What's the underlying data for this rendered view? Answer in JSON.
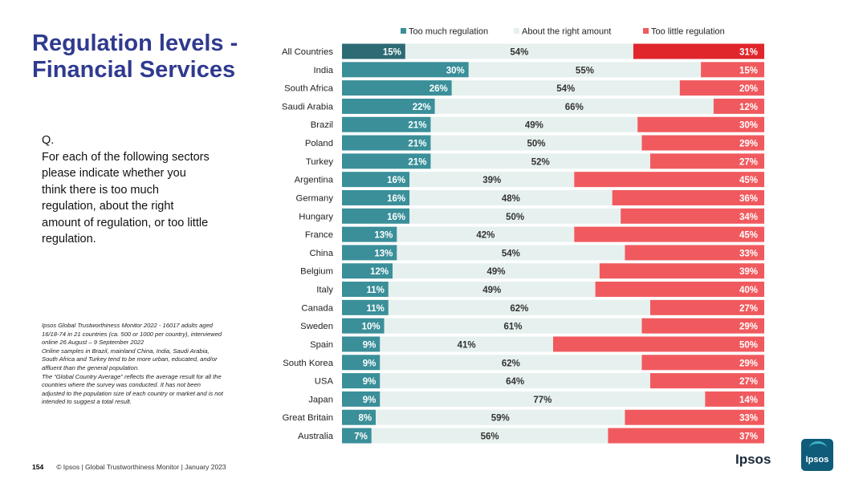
{
  "title": "Regulation levels - Financial Services",
  "question": {
    "prefix": "Q.",
    "lines": [
      "For each of the following sectors",
      "please indicate whether you",
      "think there is too much",
      "regulation, about the right",
      "amount of regulation, or too little",
      "regulation."
    ]
  },
  "footnote": [
    "Ipsos Global Trustworthiness Monitor 2022 - 16017 adults aged",
    "16/18-74 in 21 countries (ca. 500 or 1000 per country), interviewed",
    "online 26 August – 9 September 2022",
    "Online samples in Brazil, mainland China, India, Saudi Arabia,",
    "South Africa and Turkey tend to be more urban, educated, and/or",
    "affluent than the general population.",
    "The “Global Country Average” reflects the average result for all the",
    "countries where the survey was conducted. It has not been",
    "adjusted to the population size of each country or market and is not",
    "intended to suggest a total result."
  ],
  "footer": {
    "page_number": "154",
    "text": "© Ipsos | Global Trustworthiness Monitor | January 2023"
  },
  "logo": {
    "text": "Ipsos",
    "box_text": "Ipsos"
  },
  "colors": {
    "too_much": "#3a8f99",
    "too_much_highlight": "#2d6b74",
    "about_right": "#e6f0ee",
    "too_little": "#f05a5e",
    "too_little_highlight": "#e0262b",
    "title": "#2f3a8f"
  },
  "chart_data": {
    "type": "bar",
    "orientation": "horizontal",
    "stacked": true,
    "legend_position": "top",
    "categories": [
      "All Countries",
      "India",
      "South Africa",
      "Saudi Arabia",
      "Brazil",
      "Poland",
      "Turkey",
      "Argentina",
      "Germany",
      "Hungary",
      "France",
      "China",
      "Belgium",
      "Italy",
      "Canada",
      "Sweden",
      "Spain",
      "South Korea",
      "USA",
      "Japan",
      "Great Britain",
      "Australia"
    ],
    "series": [
      {
        "name": "Too much regulation",
        "values": [
          15,
          30,
          26,
          22,
          21,
          21,
          21,
          16,
          16,
          16,
          13,
          13,
          12,
          11,
          11,
          10,
          9,
          9,
          9,
          9,
          8,
          7
        ]
      },
      {
        "name": "About the right amount",
        "values": [
          54,
          55,
          54,
          66,
          49,
          50,
          52,
          39,
          48,
          50,
          42,
          54,
          49,
          49,
          62,
          61,
          41,
          62,
          64,
          77,
          59,
          56
        ]
      },
      {
        "name": "Too little regulation",
        "values": [
          31,
          15,
          20,
          12,
          30,
          29,
          27,
          45,
          36,
          34,
          45,
          33,
          39,
          40,
          27,
          29,
          50,
          29,
          27,
          14,
          33,
          37
        ]
      }
    ],
    "unit": "%",
    "xlim": [
      0,
      100
    ]
  }
}
